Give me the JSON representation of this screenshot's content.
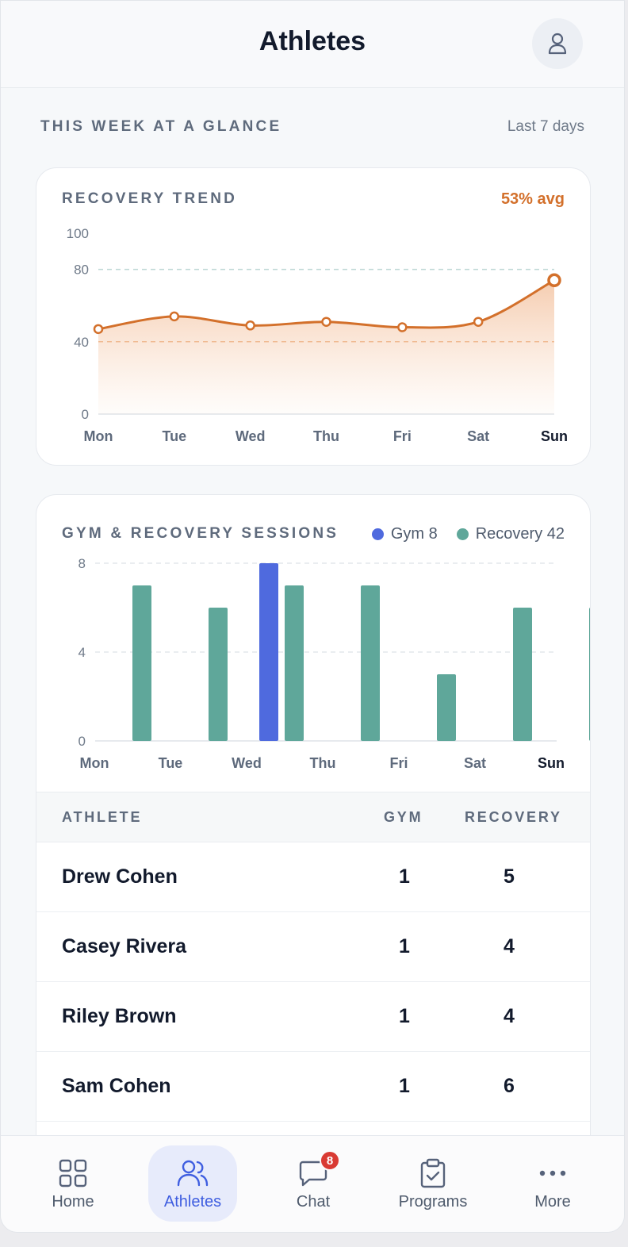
{
  "header": {
    "title": "Athletes"
  },
  "section": {
    "label": "THIS WEEK AT A GLANCE",
    "range": "Last 7 days"
  },
  "recovery_card": {
    "title": "RECOVERY TREND",
    "avg": "53% avg"
  },
  "sessions_card": {
    "title": "GYM & RECOVERY SESSIONS",
    "legend": {
      "gym": "Gym 8",
      "recovery": "Recovery 42"
    }
  },
  "colors": {
    "recovery_line": "#d3702b",
    "gym_bar": "#4f6ade",
    "recovery_bar": "#5fa79a",
    "accent": "#3f5ee0",
    "badge": "#d93a33"
  },
  "chart_data": [
    {
      "type": "area",
      "title": "RECOVERY TREND",
      "x": [
        "Mon",
        "Tue",
        "Wed",
        "Thu",
        "Fri",
        "Sat",
        "Sun"
      ],
      "y": [
        47,
        54,
        49,
        51,
        48,
        51,
        74
      ],
      "ylim": [
        0,
        100
      ],
      "yticks": [
        0,
        40,
        80,
        100
      ],
      "reference_lines": [
        40,
        80
      ],
      "highlight_category": "Sun"
    },
    {
      "type": "bar",
      "title": "GYM & RECOVERY SESSIONS",
      "categories": [
        "Mon",
        "Tue",
        "Wed",
        "Thu",
        "Fri",
        "Sat",
        "Sun"
      ],
      "series": [
        {
          "name": "Gym",
          "values": [
            0,
            0,
            8,
            0,
            0,
            0,
            0
          ]
        },
        {
          "name": "Recovery",
          "values": [
            7,
            6,
            7,
            7,
            3,
            6,
            6
          ]
        }
      ],
      "ylim": [
        0,
        8
      ],
      "yticks": [
        0,
        4,
        8
      ],
      "highlight_category": "Sun"
    }
  ],
  "table": {
    "columns": [
      "ATHLETE",
      "GYM",
      "RECOVERY"
    ],
    "rows": [
      {
        "name": "Drew Cohen",
        "gym": "1",
        "recovery": "5"
      },
      {
        "name": "Casey Rivera",
        "gym": "1",
        "recovery": "4"
      },
      {
        "name": "Riley Brown",
        "gym": "1",
        "recovery": "4"
      },
      {
        "name": "Sam Cohen",
        "gym": "1",
        "recovery": "6"
      }
    ]
  },
  "nav": {
    "items": [
      {
        "label": "Home",
        "icon": "grid-icon"
      },
      {
        "label": "Athletes",
        "icon": "users-icon",
        "active": true
      },
      {
        "label": "Chat",
        "icon": "chat-icon",
        "badge": "8"
      },
      {
        "label": "Programs",
        "icon": "clipboard-check-icon"
      },
      {
        "label": "More",
        "icon": "more-icon"
      }
    ]
  }
}
